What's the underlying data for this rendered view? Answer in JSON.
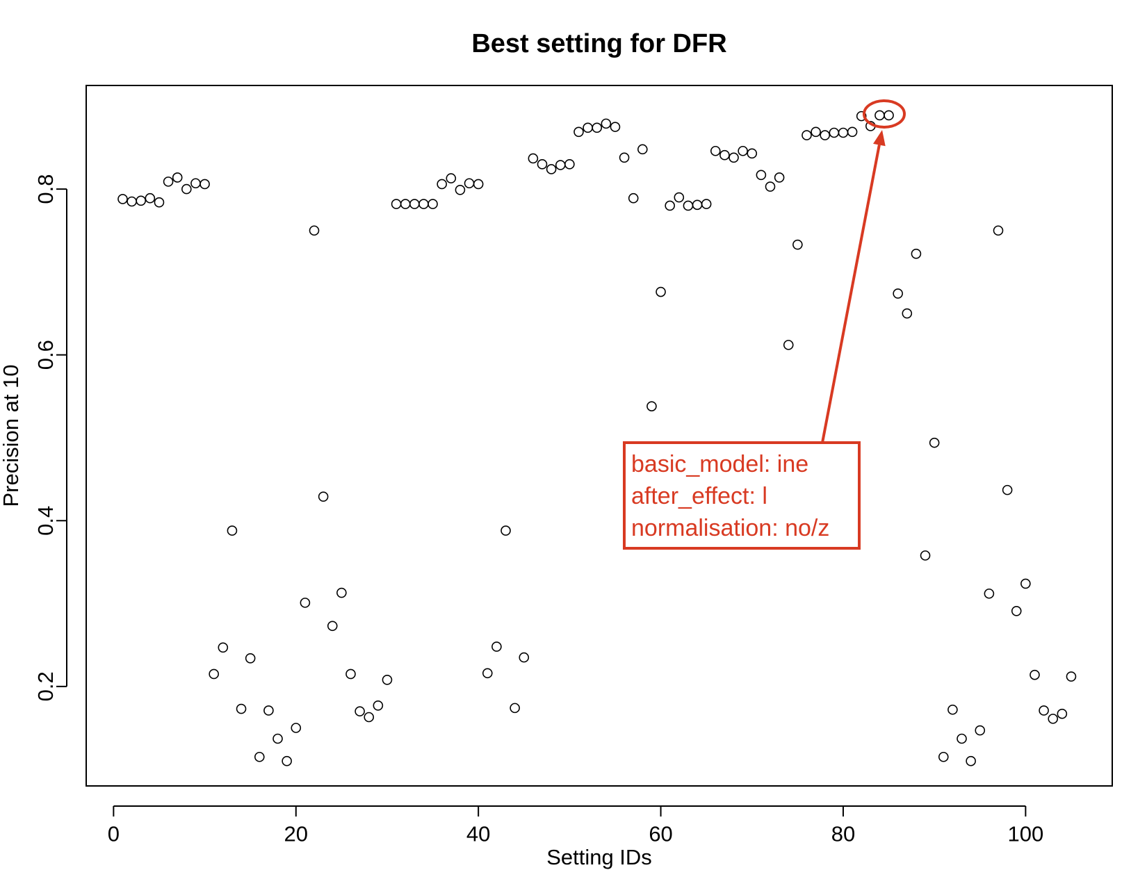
{
  "chart_data": {
    "type": "scatter",
    "title": "Best setting for DFR",
    "xlabel": "Setting IDs",
    "ylabel": "Precision at 10",
    "xlim": [
      -3,
      109.5
    ],
    "ylim": [
      0.08,
      0.925
    ],
    "x_ticks": [
      0,
      20,
      40,
      60,
      80,
      100
    ],
    "y_ticks": [
      0.2,
      0.4,
      0.6,
      0.8
    ],
    "grid": false,
    "legend": "none",
    "marker": "open-circle",
    "x": [
      1,
      2,
      3,
      4,
      5,
      6,
      7,
      8,
      9,
      10,
      11,
      12,
      13,
      14,
      15,
      16,
      17,
      18,
      19,
      20,
      21,
      22,
      23,
      24,
      25,
      26,
      27,
      28,
      29,
      30,
      31,
      32,
      33,
      34,
      35,
      36,
      37,
      38,
      39,
      40,
      41,
      42,
      43,
      44,
      45,
      46,
      47,
      48,
      49,
      50,
      51,
      52,
      53,
      54,
      55,
      56,
      57,
      58,
      59,
      60,
      61,
      62,
      63,
      64,
      65,
      66,
      67,
      68,
      69,
      70,
      71,
      72,
      73,
      74,
      75,
      76,
      77,
      78,
      79,
      80,
      81,
      82,
      83,
      84,
      85,
      86,
      87,
      88,
      89,
      90,
      91,
      92,
      93,
      94,
      95,
      96,
      97,
      98,
      99,
      100,
      101,
      102,
      103,
      104,
      105
    ],
    "y": [
      0.788,
      0.785,
      0.786,
      0.789,
      0.784,
      0.809,
      0.814,
      0.8,
      0.807,
      0.806,
      0.215,
      0.247,
      0.388,
      0.173,
      0.234,
      0.115,
      0.171,
      0.137,
      0.11,
      0.15,
      0.301,
      0.75,
      0.429,
      0.273,
      0.313,
      0.215,
      0.17,
      0.163,
      0.177,
      0.208,
      0.782,
      0.782,
      0.782,
      0.782,
      0.782,
      0.806,
      0.813,
      0.799,
      0.807,
      0.806,
      0.216,
      0.248,
      0.388,
      0.174,
      0.235,
      0.837,
      0.83,
      0.824,
      0.829,
      0.83,
      0.869,
      0.874,
      0.874,
      0.879,
      0.875,
      0.838,
      0.789,
      0.848,
      0.538,
      0.676,
      0.78,
      0.79,
      0.78,
      0.781,
      0.782,
      0.846,
      0.841,
      0.838,
      0.846,
      0.843,
      0.817,
      0.803,
      0.814,
      0.612,
      0.733,
      0.865,
      0.869,
      0.865,
      0.868,
      0.868,
      0.869,
      0.888,
      0.876,
      0.889,
      0.889,
      0.674,
      0.65,
      0.722,
      0.358,
      0.494,
      0.115,
      0.172,
      0.137,
      0.11,
      0.147,
      0.312,
      0.75,
      0.437,
      0.291,
      0.324,
      0.214,
      0.171,
      0.161,
      0.167,
      0.212
    ],
    "annotation": {
      "lines": [
        "basic_model: ine",
        "after_effect: l",
        "normalisation: no/z"
      ],
      "highlight_x": [
        84,
        85
      ],
      "highlight_y": 0.889,
      "color": "#d83a22"
    }
  }
}
